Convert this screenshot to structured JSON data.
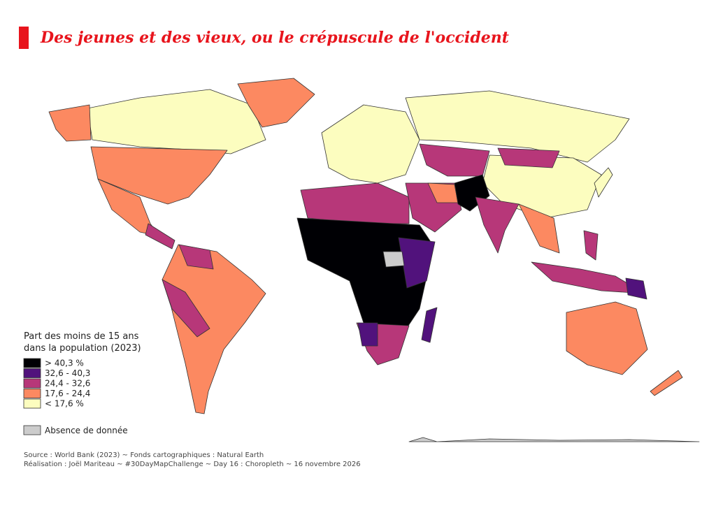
{
  "header": {
    "title": "Des jeunes et des vieux, ou le crépuscule de l'occident"
  },
  "legend": {
    "title_lines": [
      "Part des moins de 15 ans",
      "dans la population (2023)"
    ],
    "items": [
      {
        "label": "> 40,3 %",
        "color": "#000004"
      },
      {
        "label": "32,6 - 40,3",
        "color": "#51127c"
      },
      {
        "label": "24,4 - 32,6",
        "color": "#b73779"
      },
      {
        "label": "17,6 - 24,4",
        "color": "#fc8961"
      },
      {
        "label": "< 17,6 %",
        "color": "#fcfdbf"
      }
    ],
    "no_data": {
      "label": "Absence de donnée",
      "color": "#cccccc"
    }
  },
  "footer": {
    "lines": [
      "Source : World Bank (2023)  ~  Fonds cartographiques : Natural Earth",
      "Réalisation : Joël Mariteau ~ #30DayMapChallenge ~ Day 16 : Choropleth ~ 16 novembre 2026"
    ]
  }
}
